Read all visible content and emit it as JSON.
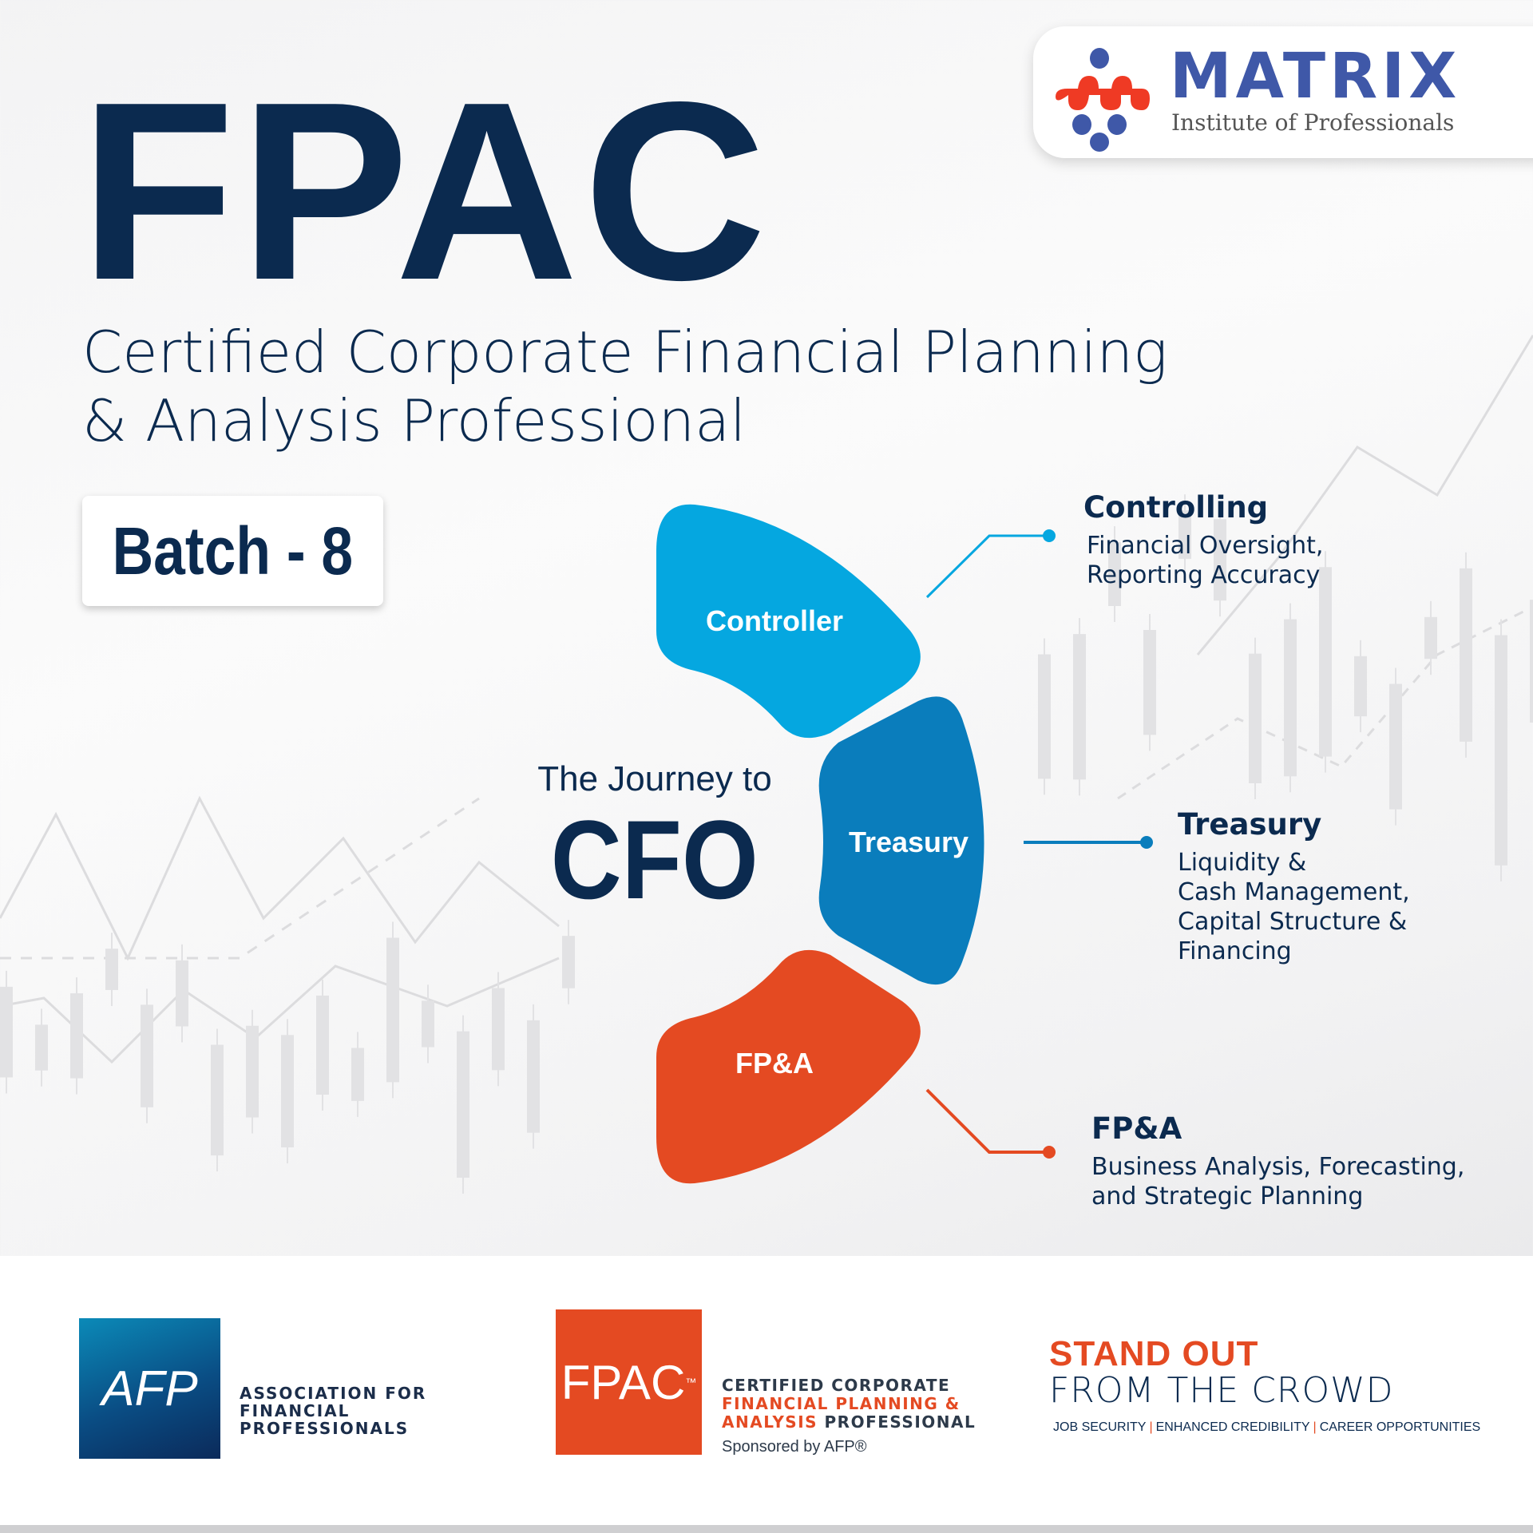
{
  "brand": {
    "name": "MATRIX",
    "tagline": "Institute of Professionals",
    "colors": {
      "blue": "#3f58a8",
      "red": "#ef3a24"
    }
  },
  "header": {
    "title": "FPAC",
    "subtitle_line1": "Certified  Corporate Financial Planning",
    "subtitle_line2": "& Analysis Professional",
    "batch": "Batch - 8"
  },
  "journey": {
    "intro": "The Journey to",
    "goal": "CFO",
    "stages": [
      {
        "label": "Controller",
        "heading": "Controlling",
        "lines": [
          "Financial Oversight,",
          "Reporting Accuracy"
        ],
        "color": "#05a7e0"
      },
      {
        "label": "Treasury",
        "heading": "Treasury",
        "lines": [
          "Liquidity &",
          "Cash Management,",
          "Capital Structure &",
          "Financing"
        ],
        "color": "#0a7dbc"
      },
      {
        "label": "FP&A",
        "heading": "FP&A",
        "lines": [
          "Business Analysis, Forecasting,",
          "and Strategic Planning"
        ],
        "color": "#e44a22"
      }
    ]
  },
  "footer": {
    "afp_logo": "AFP",
    "afp_name": [
      "ASSOCIATION FOR",
      "FINANCIAL",
      "PROFESSIONALS"
    ],
    "fpac_logo": "FPAC",
    "fpac_tm": "™",
    "fpac_name_line1": "CERTIFIED CORPORATE",
    "fpac_name_line2": "FINANCIAL PLANNING &",
    "fpac_name_line3a": "ANALYSIS",
    "fpac_name_line3b": " PROFESSIONAL",
    "sponsored": "Sponsored by AFP®",
    "slogan1": "STAND OUT",
    "slogan2": "FROM THE CROWD",
    "benefits": [
      "JOB SECURITY",
      "ENHANCED CREDIBILITY",
      "CAREER OPPORTUNITIES"
    ],
    "separator": "|"
  }
}
